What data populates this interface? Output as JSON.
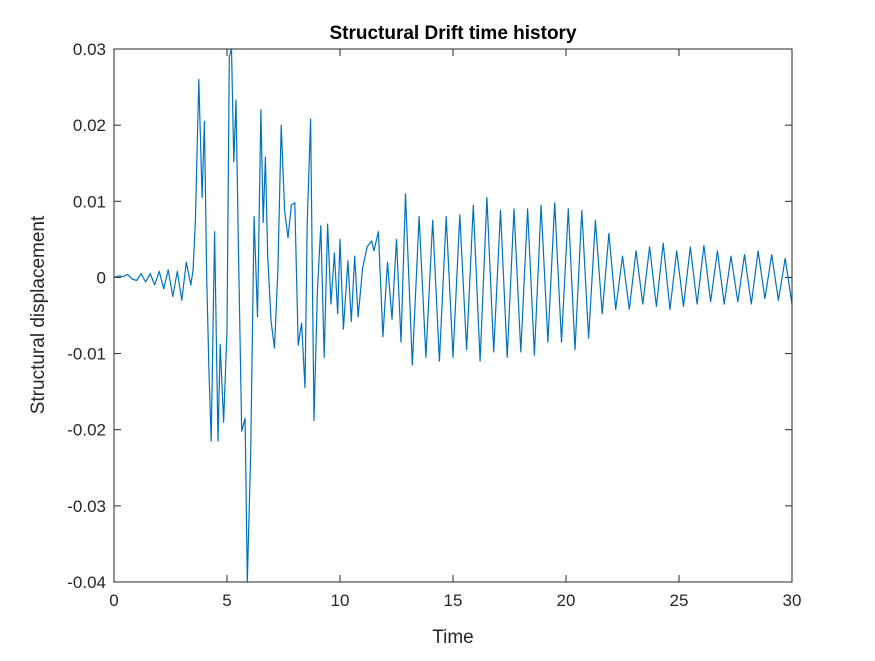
{
  "chart_data": {
    "type": "line",
    "title": "Structural Drift time history",
    "xlabel": "Time",
    "ylabel": "Structural displacement",
    "xlim": [
      0,
      30
    ],
    "ylim": [
      -0.04,
      0.03
    ],
    "xticks": [
      0,
      5,
      10,
      15,
      20,
      25,
      30
    ],
    "yticks": [
      -0.04,
      -0.03,
      -0.02,
      -0.01,
      0,
      0.01,
      0.02,
      0.03
    ],
    "xtick_labels": [
      "0",
      "5",
      "10",
      "15",
      "20",
      "25",
      "30"
    ],
    "ytick_labels": [
      "-0.04",
      "-0.03",
      "-0.02",
      "-0.01",
      "0",
      "0.01",
      "0.02",
      "0.03"
    ],
    "grid": false,
    "colors": {
      "series": "#0072BD",
      "axes": "#262626",
      "background": "#ffffff"
    },
    "series": [
      {
        "x": [
          0,
          0.2,
          0.4,
          0.6,
          0.8,
          1.0,
          1.2,
          1.4,
          1.6,
          1.8,
          2.0,
          2.2,
          2.4,
          2.6,
          2.8,
          3.0,
          3.2,
          3.4,
          3.5,
          3.6,
          3.75,
          3.9,
          4.0,
          4.1,
          4.2,
          4.3,
          4.45,
          4.6,
          4.7,
          4.85,
          5.0,
          5.1,
          5.2,
          5.3,
          5.4,
          5.5,
          5.65,
          5.8,
          5.9,
          6.05,
          6.2,
          6.35,
          6.5,
          6.6,
          6.7,
          6.8,
          6.95,
          7.1,
          7.25,
          7.4,
          7.55,
          7.7,
          7.85,
          8.0,
          8.15,
          8.3,
          8.45,
          8.55,
          8.7,
          8.85,
          9.0,
          9.15,
          9.3,
          9.45,
          9.6,
          9.75,
          9.9,
          10.0,
          10.15,
          10.35,
          10.5,
          10.65,
          10.8,
          11.0,
          11.2,
          11.4,
          11.5,
          11.7,
          11.9,
          12.1,
          12.3,
          12.5,
          12.7,
          12.9,
          13.2,
          13.5,
          13.8,
          14.1,
          14.4,
          14.7,
          15.0,
          15.3,
          15.6,
          15.9,
          16.2,
          16.5,
          16.8,
          17.1,
          17.4,
          17.7,
          18.0,
          18.3,
          18.6,
          18.9,
          19.2,
          19.5,
          19.8,
          20.1,
          20.4,
          20.7,
          21.0,
          21.3,
          21.6,
          21.9,
          22.2,
          22.5,
          22.8,
          23.1,
          23.4,
          23.7,
          24.0,
          24.3,
          24.6,
          24.9,
          25.2,
          25.5,
          25.8,
          26.1,
          26.4,
          26.7,
          27.0,
          27.3,
          27.6,
          27.9,
          28.2,
          28.5,
          28.8,
          29.1,
          29.4,
          29.7,
          30.0
        ],
        "y": [
          0,
          0.0002,
          0.0001,
          0.0004,
          -0.0002,
          -0.0004,
          0.0005,
          -0.0006,
          0.0005,
          -0.001,
          0.0008,
          -0.0015,
          0.001,
          -0.0025,
          0.0008,
          -0.003,
          0.002,
          -0.001,
          0.001,
          0.0075,
          0.026,
          0.0105,
          0.0205,
          0.0,
          -0.012,
          -0.0215,
          0.006,
          -0.0215,
          -0.0088,
          -0.019,
          -0.007,
          0.029,
          0.0305,
          0.0152,
          0.0233,
          0.0048,
          -0.0202,
          -0.0185,
          -0.04,
          -0.023,
          0.008,
          -0.0052,
          0.022,
          0.0072,
          0.0158,
          0.0028,
          -0.0058,
          -0.0093,
          0.001,
          0.02,
          0.0088,
          0.0052,
          0.0095,
          0.0098,
          -0.0089,
          -0.006,
          -0.0145,
          0.007,
          0.0208,
          -0.0188,
          -0.0018,
          0.0068,
          -0.0105,
          0.007,
          -0.0035,
          0.0032,
          -0.0048,
          0.005,
          -0.0068,
          0.0022,
          -0.0058,
          0.0028,
          -0.0052,
          0.0012,
          0.004,
          0.0048,
          0.0035,
          0.006,
          -0.0078,
          0.002,
          -0.0055,
          0.005,
          -0.0085,
          0.011,
          -0.0115,
          0.008,
          -0.0105,
          0.0075,
          -0.011,
          0.008,
          -0.0105,
          0.0082,
          -0.0095,
          0.0095,
          -0.011,
          0.0105,
          -0.0098,
          0.0088,
          -0.0105,
          0.009,
          -0.0098,
          0.009,
          -0.0102,
          0.0095,
          -0.0085,
          0.0098,
          -0.0085,
          0.009,
          -0.0095,
          0.0088,
          -0.008,
          0.0075,
          -0.0048,
          0.0058,
          -0.0042,
          0.0028,
          -0.0042,
          0.0035,
          -0.0035,
          0.004,
          -0.0038,
          0.0045,
          -0.0042,
          0.0035,
          -0.0038,
          0.004,
          -0.0035,
          0.0042,
          -0.0032,
          0.0035,
          -0.0035,
          0.0028,
          -0.0032,
          0.003,
          -0.0035,
          0.0035,
          -0.0028,
          0.003,
          -0.003,
          0.0025,
          -0.0035
        ]
      }
    ]
  }
}
